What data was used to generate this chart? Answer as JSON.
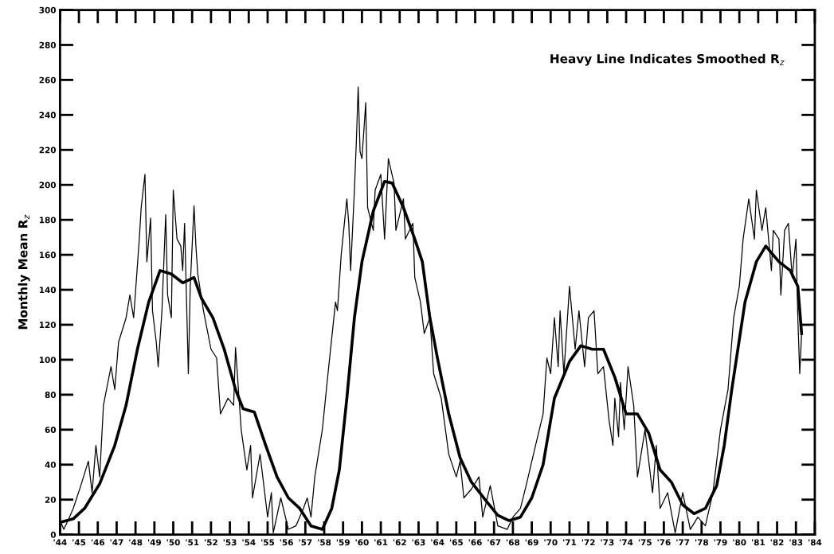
{
  "chart_data": {
    "type": "line",
    "ylabel": "Monthly Mean R$_{z}$",
    "annotations": [
      "Heavy Line Indicates Smoothed R$_{z}$"
    ],
    "xlim": [
      1944,
      1984
    ],
    "xticks": [
      {
        "value": 1944,
        "label": "'44"
      },
      {
        "value": 1945,
        "label": "'45"
      },
      {
        "value": 1946,
        "label": "'46"
      },
      {
        "value": 1947,
        "label": "'47"
      },
      {
        "value": 1948,
        "label": "'48"
      },
      {
        "value": 1949,
        "label": "'49"
      },
      {
        "value": 1950,
        "label": "'50"
      },
      {
        "value": 1951,
        "label": "'51"
      },
      {
        "value": 1952,
        "label": "'52"
      },
      {
        "value": 1953,
        "label": "'53"
      },
      {
        "value": 1954,
        "label": "'54"
      },
      {
        "value": 1955,
        "label": "'55"
      },
      {
        "value": 1956,
        "label": "'56"
      },
      {
        "value": 1957,
        "label": "'57"
      },
      {
        "value": 1958,
        "label": "'58"
      },
      {
        "value": 1959,
        "label": "'59"
      },
      {
        "value": 1960,
        "label": "'60"
      },
      {
        "value": 1961,
        "label": "'61"
      },
      {
        "value": 1962,
        "label": "'62"
      },
      {
        "value": 1963,
        "label": "'63"
      },
      {
        "value": 1964,
        "label": "'64"
      },
      {
        "value": 1965,
        "label": "'65"
      },
      {
        "value": 1966,
        "label": "'66"
      },
      {
        "value": 1967,
        "label": "'67"
      },
      {
        "value": 1968,
        "label": "'68"
      },
      {
        "value": 1969,
        "label": "'69"
      },
      {
        "value": 1970,
        "label": "'70"
      },
      {
        "value": 1971,
        "label": "'71"
      },
      {
        "value": 1972,
        "label": "'72"
      },
      {
        "value": 1973,
        "label": "'73"
      },
      {
        "value": 1974,
        "label": "'74"
      },
      {
        "value": 1975,
        "label": "'75"
      },
      {
        "value": 1976,
        "label": "'76"
      },
      {
        "value": 1977,
        "label": "'77"
      },
      {
        "value": 1978,
        "label": "'78"
      },
      {
        "value": 1979,
        "label": "'79"
      },
      {
        "value": 1980,
        "label": "'80"
      },
      {
        "value": 1981,
        "label": "'81"
      },
      {
        "value": 1982,
        "label": "'82"
      },
      {
        "value": 1983,
        "label": "'83"
      },
      {
        "value": 1984,
        "label": "'84"
      }
    ],
    "ylim": [
      0,
      300
    ],
    "yticks": [
      0,
      20,
      40,
      60,
      80,
      100,
      120,
      140,
      160,
      180,
      200,
      220,
      240,
      260,
      280,
      300
    ],
    "grid": false,
    "marker": "none",
    "line_style": "solid",
    "series": [
      {
        "color": "#000000",
        "x": [
          1944.0,
          1944.2,
          1944.5,
          1944.7,
          1945.1,
          1945.5,
          1945.7,
          1945.9,
          1946.1,
          1946.3,
          1946.7,
          1946.9,
          1947.1,
          1947.5,
          1947.7,
          1947.9,
          1948.2,
          1948.3,
          1948.5,
          1948.6,
          1948.8,
          1948.9,
          1949.1,
          1949.2,
          1949.4,
          1949.6,
          1949.7,
          1949.9,
          1950.0,
          1950.2,
          1950.4,
          1950.5,
          1950.6,
          1950.8,
          1950.9,
          1951.1,
          1951.2,
          1951.3,
          1951.6,
          1952.0,
          1952.3,
          1952.5,
          1952.9,
          1953.2,
          1953.3,
          1953.6,
          1953.9,
          1954.1,
          1954.2,
          1954.6,
          1955.0,
          1955.2,
          1955.3,
          1955.7,
          1956.1,
          1956.5,
          1956.9,
          1957.1,
          1957.3,
          1957.5,
          1957.9,
          1958.2,
          1958.6,
          1958.7,
          1958.9,
          1959.2,
          1959.3,
          1959.4,
          1959.6,
          1959.7,
          1959.8,
          1959.9,
          1960.0,
          1960.2,
          1960.3,
          1960.6,
          1960.7,
          1961.0,
          1961.2,
          1961.4,
          1961.7,
          1961.8,
          1962.2,
          1962.3,
          1962.7,
          1962.8,
          1963.1,
          1963.3,
          1963.6,
          1963.8,
          1964.2,
          1964.6,
          1965.0,
          1965.2,
          1965.4,
          1965.8,
          1966.2,
          1966.4,
          1966.8,
          1967.2,
          1967.7,
          1968.0,
          1968.4,
          1968.7,
          1969.2,
          1969.6,
          1969.8,
          1970.0,
          1970.2,
          1970.4,
          1970.5,
          1970.7,
          1971.0,
          1971.3,
          1971.5,
          1971.8,
          1972.0,
          1972.3,
          1972.5,
          1972.8,
          1973.1,
          1973.3,
          1973.4,
          1973.6,
          1973.7,
          1973.9,
          1974.1,
          1974.4,
          1974.6,
          1975.0,
          1975.4,
          1975.6,
          1975.8,
          1976.2,
          1976.6,
          1977.0,
          1977.4,
          1977.8,
          1978.2,
          1978.6,
          1979.0,
          1979.4,
          1979.7,
          1980.0,
          1980.2,
          1980.5,
          1980.8,
          1980.9,
          1981.2,
          1981.4,
          1981.7,
          1981.8,
          1982.1,
          1982.2,
          1982.4,
          1982.6,
          1982.8,
          1983.0,
          1983.1,
          1983.2,
          1983.3
        ],
        "values": [
          8,
          3,
          10,
          15,
          28,
          42,
          24,
          51,
          33,
          74,
          96,
          83,
          110,
          124,
          137,
          124,
          169,
          187,
          206,
          156,
          181,
          128,
          110,
          96,
          128,
          183,
          137,
          124,
          197,
          169,
          165,
          151,
          178,
          92,
          142,
          188,
          165,
          149,
          128,
          106,
          101,
          69,
          78,
          74,
          107,
          60,
          37,
          51,
          21,
          46,
          10,
          24,
          1,
          21,
          3,
          5,
          15,
          21,
          10,
          33,
          60,
          92,
          133,
          128,
          160,
          192,
          178,
          151,
          197,
          224,
          256,
          219,
          215,
          247,
          187,
          174,
          197,
          206,
          169,
          215,
          201,
          174,
          192,
          169,
          178,
          147,
          133,
          115,
          124,
          92,
          78,
          46,
          33,
          42,
          21,
          26,
          33,
          10,
          28,
          5,
          3,
          10,
          15,
          28,
          51,
          69,
          101,
          92,
          124,
          96,
          128,
          92,
          142,
          106,
          128,
          96,
          124,
          128,
          92,
          96,
          65,
          51,
          78,
          56,
          87,
          60,
          96,
          74,
          33,
          60,
          24,
          51,
          15,
          24,
          1,
          24,
          3,
          10,
          5,
          24,
          60,
          83,
          124,
          142,
          169,
          192,
          169,
          197,
          174,
          187,
          151,
          174,
          169,
          137,
          174,
          178,
          147,
          169,
          124,
          92,
          115
        ]
      },
      {
        "color": "#000000",
        "x": [
          1944.0,
          1944.7,
          1945.3,
          1946.1,
          1946.9,
          1947.5,
          1948.1,
          1948.7,
          1949.3,
          1949.9,
          1950.5,
          1951.1,
          1951.5,
          1952.1,
          1952.7,
          1953.3,
          1953.7,
          1954.3,
          1954.9,
          1955.5,
          1956.1,
          1956.7,
          1957.3,
          1957.9,
          1958.4,
          1958.8,
          1959.2,
          1959.6,
          1960.0,
          1960.6,
          1961.2,
          1961.6,
          1962.2,
          1962.8,
          1963.2,
          1963.6,
          1964.0,
          1964.6,
          1965.2,
          1965.8,
          1966.6,
          1967.2,
          1967.8,
          1968.4,
          1969.0,
          1969.6,
          1970.2,
          1971.0,
          1971.6,
          1972.2,
          1972.8,
          1973.4,
          1974.0,
          1974.6,
          1975.2,
          1975.8,
          1976.4,
          1977.0,
          1977.6,
          1978.2,
          1978.8,
          1979.2,
          1979.6,
          1980.3,
          1980.9,
          1981.4,
          1982.1,
          1982.7,
          1983.1,
          1983.3
        ],
        "values": [
          7,
          9,
          15,
          29,
          51,
          74,
          106,
          133,
          151,
          149,
          144,
          147,
          135,
          124,
          106,
          83,
          72,
          70,
          51,
          33,
          21,
          15,
          5,
          3,
          15,
          37,
          78,
          124,
          156,
          185,
          202,
          201,
          187,
          169,
          156,
          124,
          101,
          69,
          44,
          30,
          19,
          11,
          8,
          10,
          21,
          40,
          78,
          99,
          108,
          106,
          106,
          90,
          69,
          69,
          58,
          37,
          30,
          17,
          12,
          15,
          28,
          51,
          83,
          133,
          156,
          165,
          156,
          151,
          142,
          115
        ]
      }
    ]
  }
}
